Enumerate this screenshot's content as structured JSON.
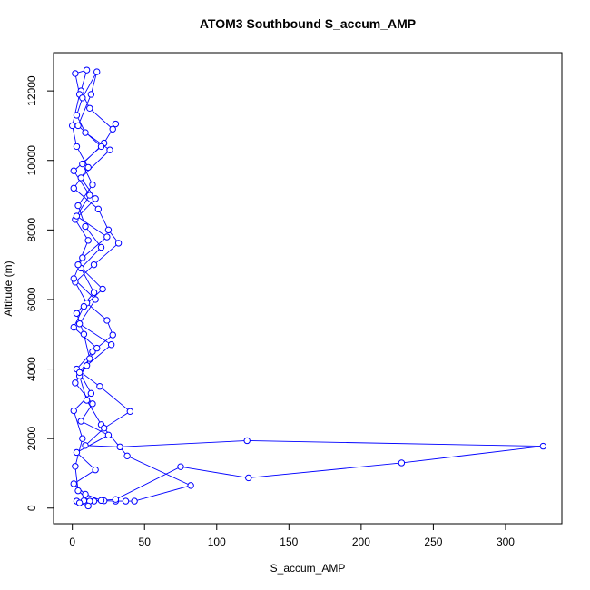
{
  "chart_data": {
    "type": "line",
    "title": "ATOM3 Southbound S_accum_AMP",
    "x_label": "S_accum_AMP",
    "y_label": "Altitude (m)",
    "color": "#0000ff",
    "markers": true,
    "x": [
      3,
      8,
      15,
      22,
      30,
      37,
      43,
      82,
      38,
      20,
      10,
      5,
      12,
      8,
      3,
      15,
      6,
      20,
      9,
      4,
      14,
      7,
      22,
      30,
      28,
      12,
      6,
      10,
      2,
      5,
      0,
      3,
      11,
      1,
      18,
      25,
      32,
      15,
      2,
      10,
      24,
      28,
      14,
      3,
      19,
      40,
      22,
      9,
      33,
      121,
      326,
      228,
      122,
      75,
      30,
      12,
      4,
      2,
      7,
      1,
      13,
      5,
      17,
      1,
      8,
      21,
      4,
      11,
      2,
      16,
      6,
      26,
      9,
      3,
      7,
      17,
      13,
      4,
      20,
      1,
      12,
      3,
      24,
      7,
      1,
      16,
      5,
      27,
      10,
      2,
      14,
      6,
      25,
      3,
      16,
      1,
      9,
      20,
      5,
      11
    ],
    "values": [
      200,
      210,
      200,
      210,
      200,
      200,
      200,
      650,
      1500,
      2400,
      3100,
      3800,
      4300,
      5000,
      5600,
      6200,
      6900,
      7500,
      8100,
      8700,
      9300,
      9900,
      10500,
      11050,
      10900,
      11500,
      12000,
      12600,
      12500,
      11900,
      11000,
      10400,
      9800,
      9200,
      8600,
      8000,
      7620,
      7000,
      6500,
      5900,
      5400,
      4980,
      4500,
      4000,
      3500,
      2780,
      2300,
      1800,
      1760,
      1940,
      1780,
      1300,
      870,
      1190,
      250,
      200,
      500,
      1200,
      2000,
      2800,
      3300,
      3900,
      4600,
      5200,
      5800,
      6300,
      7000,
      7700,
      8300,
      8900,
      9500,
      10300,
      10800,
      11300,
      11800,
      12550,
      11900,
      11000,
      10400,
      9700,
      9000,
      8400,
      7800,
      7200,
      6600,
      6000,
      5300,
      4700,
      4100,
      3600,
      3000,
      2500,
      2100,
      1600,
      1100,
      700,
      400,
      220,
      150,
      60
    ],
    "xlim": [
      -13,
      339
    ],
    "ylim": [
      -450,
      13100
    ],
    "xticks": [
      0,
      50,
      100,
      150,
      200,
      250,
      300
    ],
    "yticks": [
      0,
      2000,
      4000,
      6000,
      8000,
      10000,
      12000
    ]
  }
}
